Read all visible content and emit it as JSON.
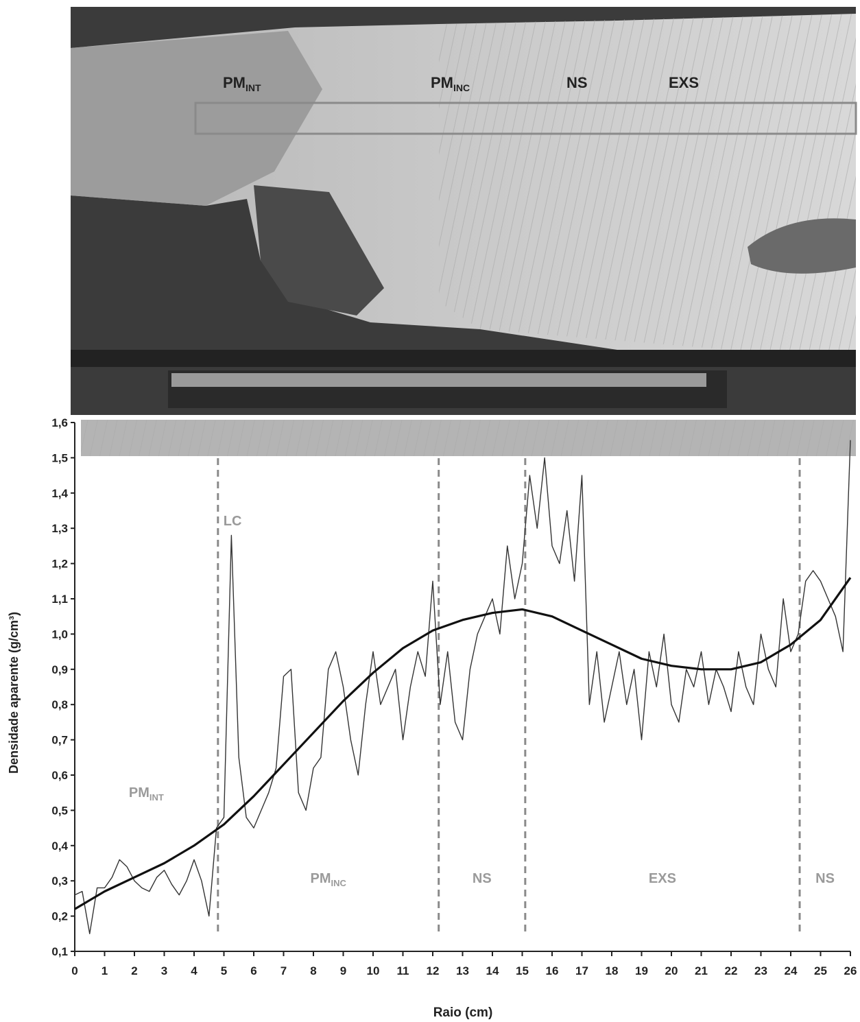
{
  "photo_labels": [
    {
      "label": "PM",
      "sub": "INT"
    },
    {
      "label": "PM",
      "sub": "INC"
    },
    {
      "label": "NS",
      "sub": null
    },
    {
      "label": "EXS",
      "sub": null
    }
  ],
  "chart_data": {
    "type": "line",
    "x_label": "Raio (cm)",
    "y_label": "Densidade aparente (g/cm³)",
    "xlim": [
      0,
      26
    ],
    "ylim": [
      0.1,
      1.6
    ],
    "xticks": [
      0,
      1,
      2,
      3,
      4,
      5,
      6,
      7,
      8,
      9,
      10,
      11,
      12,
      13,
      14,
      15,
      16,
      17,
      18,
      19,
      20,
      21,
      22,
      23,
      24,
      25,
      26
    ],
    "yticks": [
      {
        "value": 0.1,
        "label": "0,1"
      },
      {
        "value": 0.2,
        "label": "0,2"
      },
      {
        "value": 0.3,
        "label": "0,3"
      },
      {
        "value": 0.4,
        "label": "0,4"
      },
      {
        "value": 0.5,
        "label": "0,5"
      },
      {
        "value": 0.6,
        "label": "0,6"
      },
      {
        "value": 0.7,
        "label": "0,7"
      },
      {
        "value": 0.8,
        "label": "0,8"
      },
      {
        "value": 0.9,
        "label": "0,9"
      },
      {
        "value": 1.0,
        "label": "1,0"
      },
      {
        "value": 1.1,
        "label": "1,1"
      },
      {
        "value": 1.2,
        "label": "1,2"
      },
      {
        "value": 1.3,
        "label": "1,3"
      },
      {
        "value": 1.4,
        "label": "1,4"
      },
      {
        "value": 1.5,
        "label": "1,5"
      },
      {
        "value": 1.6,
        "label": "1,6"
      }
    ],
    "grid": false,
    "boundaries": [
      4.8,
      12.2,
      15.1,
      24.3
    ],
    "boundary_label": "LC",
    "zones": [
      {
        "label": "PM",
        "sub": "INT"
      },
      {
        "label": "PM",
        "sub": "INC"
      },
      {
        "label": "NS",
        "sub": null
      },
      {
        "label": "EXS",
        "sub": null
      },
      {
        "label": "NS",
        "sub": null
      }
    ],
    "series": [
      {
        "color": "#333333",
        "width": 1.4,
        "x": [
          0,
          0.25,
          0.5,
          0.75,
          1,
          1.25,
          1.5,
          1.75,
          2,
          2.25,
          2.5,
          2.75,
          3,
          3.25,
          3.5,
          3.75,
          4,
          4.25,
          4.5,
          4.75,
          5,
          5.25,
          5.5,
          5.75,
          6,
          6.25,
          6.5,
          6.75,
          7,
          7.25,
          7.5,
          7.75,
          8,
          8.25,
          8.5,
          8.75,
          9,
          9.25,
          9.5,
          9.75,
          10,
          10.25,
          10.5,
          10.75,
          11,
          11.25,
          11.5,
          11.75,
          12,
          12.25,
          12.5,
          12.75,
          13,
          13.25,
          13.5,
          13.75,
          14,
          14.25,
          14.5,
          14.75,
          15,
          15.25,
          15.5,
          15.75,
          16,
          16.25,
          16.5,
          16.75,
          17,
          17.25,
          17.5,
          17.75,
          18,
          18.25,
          18.5,
          18.75,
          19,
          19.25,
          19.5,
          19.75,
          20,
          20.25,
          20.5,
          20.75,
          21,
          21.25,
          21.5,
          21.75,
          22,
          22.25,
          22.5,
          22.75,
          23,
          23.25,
          23.5,
          23.75,
          24,
          24.25,
          24.5,
          24.75,
          25,
          25.25,
          25.5,
          25.75,
          26
        ],
        "values": [
          0.26,
          0.27,
          0.15,
          0.28,
          0.28,
          0.31,
          0.36,
          0.34,
          0.3,
          0.28,
          0.27,
          0.31,
          0.33,
          0.29,
          0.26,
          0.3,
          0.36,
          0.3,
          0.2,
          0.45,
          0.48,
          1.28,
          0.65,
          0.48,
          0.45,
          0.5,
          0.55,
          0.62,
          0.88,
          0.9,
          0.55,
          0.5,
          0.62,
          0.65,
          0.9,
          0.95,
          0.85,
          0.7,
          0.6,
          0.8,
          0.95,
          0.8,
          0.85,
          0.9,
          0.7,
          0.85,
          0.95,
          0.88,
          1.15,
          0.8,
          0.95,
          0.75,
          0.7,
          0.9,
          1.0,
          1.05,
          1.1,
          1.0,
          1.25,
          1.1,
          1.2,
          1.45,
          1.3,
          1.5,
          1.25,
          1.2,
          1.35,
          1.15,
          1.45,
          0.8,
          0.95,
          0.75,
          0.85,
          0.95,
          0.8,
          0.9,
          0.7,
          0.95,
          0.85,
          1.0,
          0.8,
          0.75,
          0.9,
          0.85,
          0.95,
          0.8,
          0.9,
          0.85,
          0.78,
          0.95,
          0.85,
          0.8,
          1.0,
          0.9,
          0.85,
          1.1,
          0.95,
          1.0,
          1.15,
          1.18,
          1.15,
          1.1,
          1.05,
          0.95,
          1.55
        ]
      },
      {
        "color": "#111111",
        "width": 3.2,
        "x": [
          0,
          1,
          2,
          3,
          4,
          5,
          6,
          7,
          8,
          9,
          10,
          11,
          12,
          13,
          14,
          15,
          16,
          17,
          18,
          19,
          20,
          21,
          22,
          23,
          24,
          25,
          26
        ],
        "values": [
          0.22,
          0.27,
          0.31,
          0.35,
          0.4,
          0.46,
          0.54,
          0.63,
          0.72,
          0.81,
          0.89,
          0.96,
          1.01,
          1.04,
          1.06,
          1.07,
          1.05,
          1.01,
          0.97,
          0.93,
          0.91,
          0.9,
          0.9,
          0.92,
          0.97,
          1.04,
          1.16
        ]
      }
    ]
  }
}
